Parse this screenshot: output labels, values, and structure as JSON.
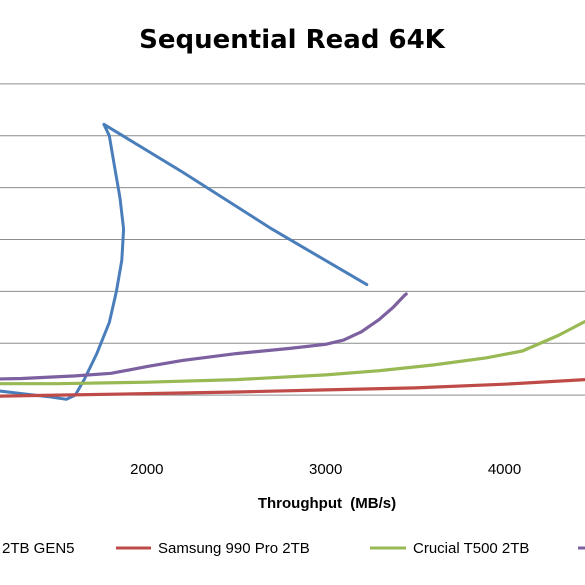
{
  "chart_data": {
    "type": "line",
    "title": "Sequential Read 64K",
    "xlabel": "Throughput  (MB/s)",
    "ylabel": "",
    "xlim": [
      1000,
      4450
    ],
    "ylim": [
      0,
      800
    ],
    "grid": true,
    "legend_position": "bottom",
    "xticks": [
      2000,
      3000,
      4000
    ],
    "yticks": [
      100,
      200,
      300,
      400,
      500,
      600,
      700
    ],
    "series": [
      {
        "name": "2TB GEN5",
        "color": "#4a7ebb",
        "x": [
          1000,
          1300,
          1450,
          1550,
          1600,
          1650,
          1720,
          1790,
          1830,
          1860,
          1870,
          1850,
          1820,
          1790,
          1760,
          2200,
          2700,
          3230
        ],
        "y": [
          115,
          103,
          97,
          92,
          100,
          130,
          180,
          240,
          300,
          360,
          420,
          480,
          540,
          600,
          622,
          530,
          420,
          313
        ]
      },
      {
        "name": "Samsung 990 Pro 2TB",
        "color": "#be4b48",
        "x": [
          1000,
          1500,
          2000,
          2500,
          3000,
          3500,
          4000,
          4450
        ],
        "y": [
          97,
          100,
          103,
          106,
          110,
          114,
          121,
          130
        ]
      },
      {
        "name": "Crucial T500 2TB",
        "color": "#98b954",
        "x": [
          1000,
          1500,
          2000,
          2500,
          3000,
          3300,
          3600,
          3900,
          4100,
          4300,
          4450
        ],
        "y": [
          122,
          122,
          125,
          130,
          139,
          147,
          158,
          172,
          185,
          215,
          242
        ]
      },
      {
        "name": "",
        "color": "#7d60a0",
        "x": [
          1000,
          1300,
          1600,
          1800,
          2000,
          2200,
          2500,
          2800,
          3000,
          3100,
          3200,
          3300,
          3380,
          3440,
          3450
        ],
        "y": [
          130,
          132,
          137,
          142,
          155,
          167,
          180,
          190,
          198,
          206,
          222,
          246,
          270,
          292,
          295
        ]
      }
    ]
  }
}
